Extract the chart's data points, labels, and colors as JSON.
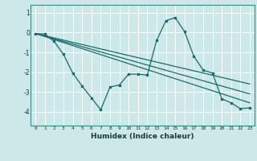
{
  "xlabel": "Humidex (Indice chaleur)",
  "bg_color": "#cce8e8",
  "grid_color": "#ffffff",
  "line_color": "#1a6b6b",
  "xlim": [
    -0.5,
    23.5
  ],
  "ylim": [
    -4.7,
    1.4
  ],
  "xticks": [
    0,
    1,
    2,
    3,
    4,
    5,
    6,
    7,
    8,
    9,
    10,
    11,
    12,
    13,
    14,
    15,
    16,
    17,
    18,
    19,
    20,
    21,
    22,
    23
  ],
  "yticks": [
    -4,
    -3,
    -2,
    -1,
    0,
    1
  ],
  "line1_x": [
    0,
    1,
    2,
    3,
    4,
    5,
    6,
    7,
    8,
    9,
    10,
    11,
    12,
    13,
    14,
    15,
    16,
    17,
    18,
    19,
    20,
    21,
    22,
    23
  ],
  "line1_y": [
    -0.05,
    -0.07,
    -0.45,
    -1.1,
    -2.05,
    -2.7,
    -3.3,
    -3.9,
    -2.75,
    -2.65,
    -2.1,
    -2.1,
    -2.15,
    -0.4,
    0.6,
    0.75,
    0.05,
    -1.2,
    -1.9,
    -2.05,
    -3.35,
    -3.55,
    -3.85,
    -3.8
  ],
  "line2_x": [
    0,
    23
  ],
  "line2_y": [
    -0.05,
    -2.6
  ],
  "line3_x": [
    0,
    23
  ],
  "line3_y": [
    -0.05,
    -3.1
  ],
  "line4_x": [
    0,
    23
  ],
  "line4_y": [
    -0.05,
    -3.55
  ]
}
